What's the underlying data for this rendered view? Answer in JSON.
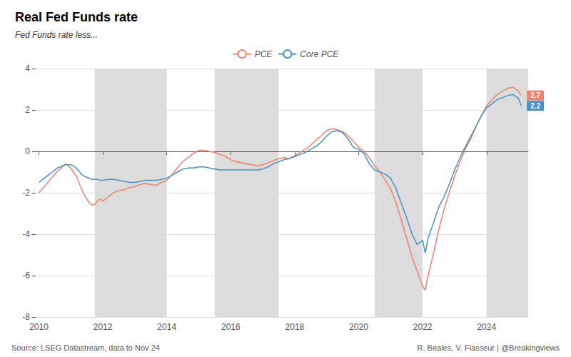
{
  "chart_data": {
    "type": "line",
    "title": "Real Fed Funds rate",
    "subtitle": "Fed Funds rate less...",
    "source": "Source: LSEG Datastream, data to Nov 24",
    "credit": "R. Beales, V. Flasseur | @Breakingviews",
    "legend": "top",
    "grid": true,
    "xlim": [
      2009.9,
      2025.3
    ],
    "xticks": [
      2010,
      2012,
      2014,
      2016,
      2018,
      2020,
      2022,
      2024
    ],
    "ylim": [
      -8,
      4
    ],
    "yticks": [
      -8,
      -6,
      -4,
      -2,
      0,
      2,
      4
    ],
    "shaded_regions": [
      {
        "start": 2011.75,
        "end": 2014.0,
        "color": "#DCDCDC"
      },
      {
        "start": 2015.5,
        "end": 2017.5,
        "color": "#DCDCDC"
      },
      {
        "start": 2020.5,
        "end": 2022.0,
        "color": "#DCDCDC"
      },
      {
        "start": 2024.0,
        "end": 2025.3,
        "color": "#DCDCDC"
      }
    ],
    "x": [
      2010.0,
      2010.08,
      2010.17,
      2010.25,
      2010.33,
      2010.42,
      2010.5,
      2010.58,
      2010.67,
      2010.75,
      2010.83,
      2010.92,
      2011.0,
      2011.08,
      2011.17,
      2011.25,
      2011.33,
      2011.42,
      2011.5,
      2011.58,
      2011.67,
      2011.75,
      2011.83,
      2011.92,
      2012.0,
      2012.17,
      2012.33,
      2012.5,
      2012.67,
      2012.83,
      2013.0,
      2013.17,
      2013.33,
      2013.5,
      2013.67,
      2013.83,
      2014.0,
      2014.17,
      2014.33,
      2014.5,
      2014.67,
      2014.83,
      2015.0,
      2015.17,
      2015.33,
      2015.5,
      2015.67,
      2015.83,
      2016.0,
      2016.17,
      2016.33,
      2016.5,
      2016.67,
      2016.83,
      2017.0,
      2017.17,
      2017.33,
      2017.5,
      2017.67,
      2017.83,
      2018.0,
      2018.17,
      2018.33,
      2018.5,
      2018.67,
      2018.83,
      2019.0,
      2019.17,
      2019.33,
      2019.5,
      2019.67,
      2019.83,
      2020.0,
      2020.17,
      2020.33,
      2020.5,
      2020.67,
      2020.83,
      2021.0,
      2021.17,
      2021.33,
      2021.5,
      2021.67,
      2021.83,
      2022.0,
      2022.08,
      2022.17,
      2022.33,
      2022.5,
      2022.67,
      2022.83,
      2023.0,
      2023.17,
      2023.33,
      2023.5,
      2023.67,
      2023.83,
      2024.0,
      2024.17,
      2024.33,
      2024.5,
      2024.67,
      2024.83,
      2025.0,
      2025.08
    ],
    "series": [
      {
        "name": "PCE",
        "color": "#F08070",
        "end_label": "2.7",
        "values": [
          -2.0,
          -1.85,
          -1.7,
          -1.55,
          -1.4,
          -1.25,
          -1.1,
          -0.95,
          -0.85,
          -0.7,
          -0.6,
          -0.7,
          -0.8,
          -1.0,
          -1.2,
          -1.5,
          -1.8,
          -2.1,
          -2.3,
          -2.5,
          -2.6,
          -2.55,
          -2.4,
          -2.3,
          -2.4,
          -2.2,
          -2.0,
          -1.9,
          -1.85,
          -1.75,
          -1.7,
          -1.6,
          -1.55,
          -1.6,
          -1.65,
          -1.5,
          -1.4,
          -1.1,
          -0.8,
          -0.5,
          -0.3,
          -0.1,
          0.05,
          0.05,
          0.0,
          -0.05,
          -0.15,
          -0.25,
          -0.4,
          -0.5,
          -0.55,
          -0.6,
          -0.65,
          -0.7,
          -0.65,
          -0.55,
          -0.45,
          -0.35,
          -0.3,
          -0.35,
          -0.2,
          -0.05,
          0.1,
          0.3,
          0.55,
          0.75,
          1.0,
          1.1,
          1.05,
          0.95,
          0.75,
          0.5,
          0.2,
          0.0,
          -0.3,
          -0.7,
          -1.0,
          -1.4,
          -1.8,
          -2.5,
          -3.3,
          -4.2,
          -5.1,
          -5.8,
          -6.5,
          -6.7,
          -6.0,
          -5.0,
          -3.8,
          -2.8,
          -2.0,
          -1.2,
          -0.5,
          0.1,
          0.6,
          1.2,
          1.7,
          2.2,
          2.5,
          2.75,
          2.9,
          3.05,
          3.1,
          2.9,
          2.7
        ]
      },
      {
        "name": "Core PCE",
        "color": "#4A90C4",
        "end_label": "2.2",
        "values": [
          -1.5,
          -1.4,
          -1.3,
          -1.2,
          -1.1,
          -1.0,
          -0.9,
          -0.8,
          -0.75,
          -0.7,
          -0.65,
          -0.65,
          -0.65,
          -0.7,
          -0.8,
          -0.95,
          -1.1,
          -1.2,
          -1.25,
          -1.3,
          -1.35,
          -1.35,
          -1.35,
          -1.4,
          -1.4,
          -1.35,
          -1.35,
          -1.4,
          -1.45,
          -1.5,
          -1.5,
          -1.45,
          -1.4,
          -1.4,
          -1.4,
          -1.35,
          -1.3,
          -1.15,
          -1.0,
          -0.85,
          -0.8,
          -0.8,
          -0.75,
          -0.75,
          -0.8,
          -0.85,
          -0.9,
          -0.9,
          -0.9,
          -0.9,
          -0.9,
          -0.9,
          -0.9,
          -0.9,
          -0.85,
          -0.75,
          -0.6,
          -0.5,
          -0.4,
          -0.35,
          -0.25,
          -0.15,
          -0.05,
          0.1,
          0.25,
          0.45,
          0.75,
          0.95,
          1.0,
          0.9,
          0.6,
          0.2,
          0.1,
          -0.1,
          -0.6,
          -0.9,
          -1.0,
          -1.1,
          -1.3,
          -1.8,
          -2.5,
          -3.2,
          -4.0,
          -4.5,
          -4.3,
          -4.9,
          -4.2,
          -3.5,
          -2.7,
          -2.2,
          -1.6,
          -0.9,
          -0.3,
          0.2,
          0.7,
          1.2,
          1.7,
          2.1,
          2.3,
          2.5,
          2.6,
          2.7,
          2.75,
          2.55,
          2.2
        ]
      }
    ]
  }
}
